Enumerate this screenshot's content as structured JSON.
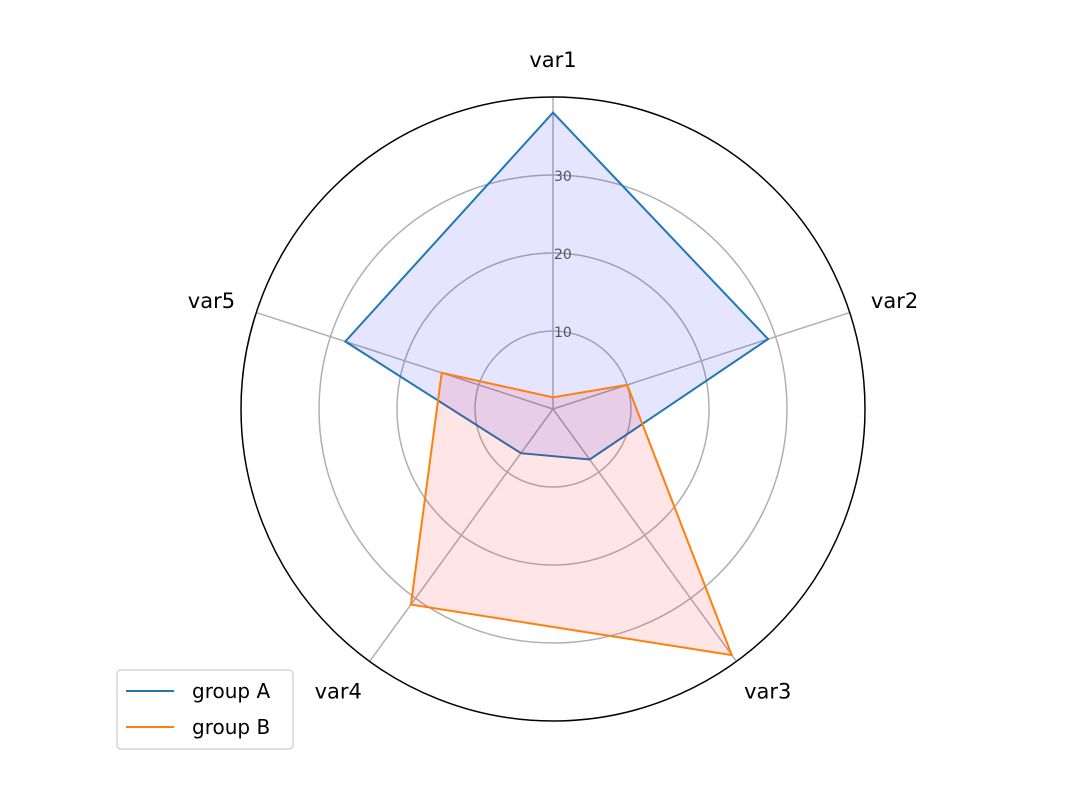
{
  "chart_data": {
    "type": "radar",
    "categories": [
      "var1",
      "var2",
      "var3",
      "var4",
      "var5"
    ],
    "r_ticks": [
      10,
      20,
      30
    ],
    "r_tick_labels": [
      "10",
      "20",
      "30"
    ],
    "rlim": [
      0,
      40
    ],
    "grid": true,
    "legend_position": "lower-left",
    "series": [
      {
        "name": "group A",
        "values": [
          38,
          29,
          8,
          7,
          28
        ],
        "color": "#1f77b4",
        "fill": "#0000ff",
        "fill_opacity": 0.1
      },
      {
        "name": "group B",
        "values": [
          1.5,
          10,
          39,
          31,
          15
        ],
        "color": "#ff7f0e",
        "fill": "#ff0000",
        "fill_opacity": 0.1
      }
    ]
  }
}
